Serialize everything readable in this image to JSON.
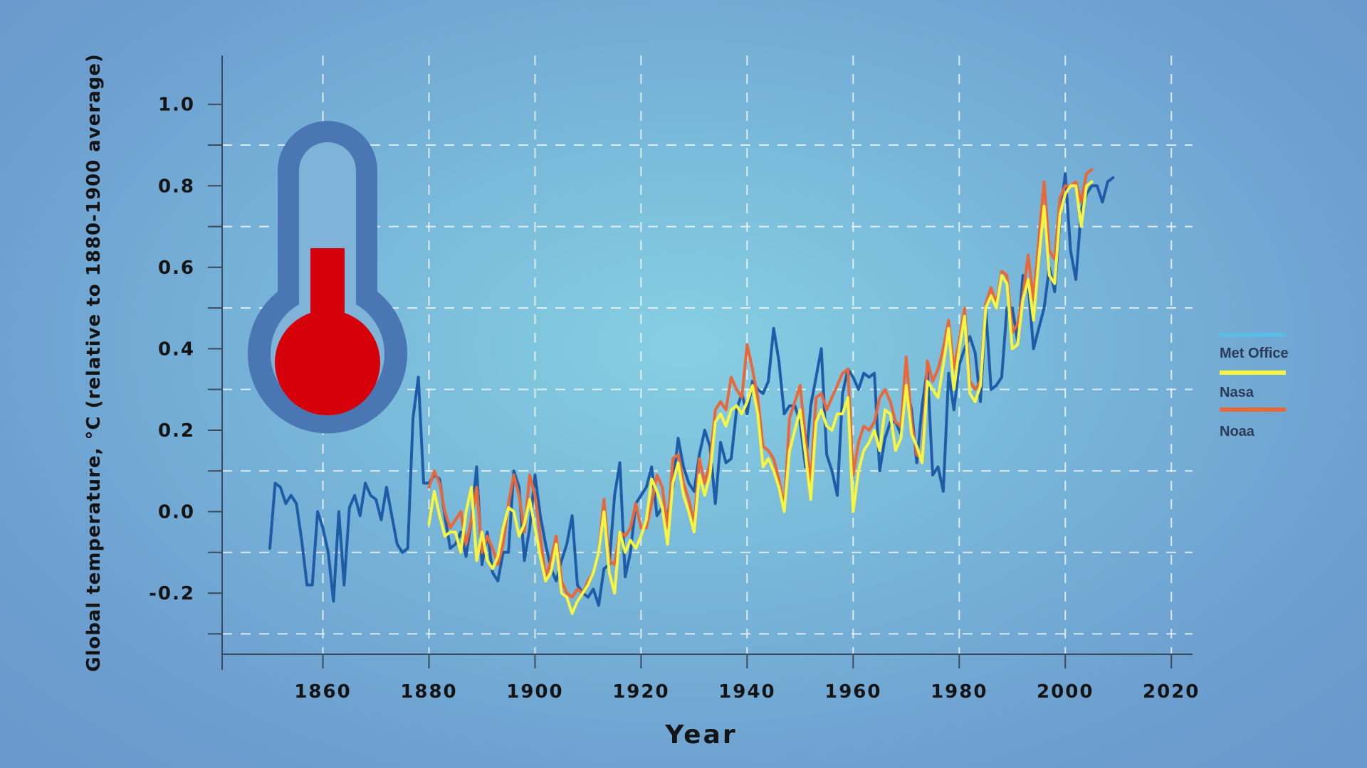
{
  "colors": {
    "met_office": "#1f5ca8",
    "met_office_legend": "#5bbde6",
    "nasa": "#f5f542",
    "noaa": "#e8683a",
    "axis": "#3a4a5a",
    "thermo_outer": "#4a77b4",
    "thermo_inner": "#79b9da",
    "thermo_fill": "#d5000a"
  },
  "chart_data": {
    "type": "line",
    "xlabel": "Year",
    "ylabel": "Global temperature, °C (relative to 1880-1900 average)",
    "xlim": [
      1841,
      2024
    ],
    "ylim": [
      -0.35,
      1.12
    ],
    "xticks": [
      "1860",
      "1880",
      "1900",
      "1920",
      "1940",
      "1960",
      "1980",
      "2000",
      "2020"
    ],
    "yticks": [
      "-0.2",
      "0.0",
      "0.2",
      "0.4",
      "0.6",
      "0.8",
      "1.0"
    ],
    "grid": true,
    "legend_placement": "right",
    "series": [
      {
        "name": "Met Office",
        "x_start": 1850,
        "values": [
          -0.09,
          0.07,
          0.06,
          0.02,
          0.04,
          0.02,
          -0.07,
          -0.18,
          -0.18,
          0.0,
          -0.04,
          -0.1,
          -0.22,
          0.0,
          -0.18,
          0.01,
          0.04,
          -0.01,
          0.07,
          0.04,
          0.03,
          -0.02,
          0.06,
          -0.01,
          -0.08,
          -0.1,
          -0.09,
          0.23,
          0.33,
          0.07,
          0.07,
          0.09,
          0.08,
          -0.01,
          -0.09,
          -0.08,
          -0.05,
          -0.11,
          -0.02,
          0.11,
          -0.13,
          -0.05,
          -0.15,
          -0.17,
          -0.1,
          -0.1,
          0.1,
          0.06,
          -0.12,
          -0.04,
          0.09,
          -0.01,
          -0.08,
          -0.14,
          -0.17,
          -0.12,
          -0.08,
          -0.01,
          -0.18,
          -0.2,
          -0.21,
          -0.19,
          -0.23,
          -0.14,
          -0.13,
          0.04,
          0.12,
          -0.16,
          -0.1,
          0.02,
          0.04,
          0.06,
          0.11,
          -0.01,
          0.01,
          -0.01,
          0.06,
          0.18,
          0.11,
          0.07,
          0.05,
          0.14,
          0.2,
          0.16,
          0.02,
          0.17,
          0.12,
          0.13,
          0.25,
          0.29,
          0.24,
          0.32,
          0.3,
          0.29,
          0.32,
          0.45,
          0.37,
          0.24,
          0.26,
          0.26,
          0.22,
          0.11,
          0.26,
          0.33,
          0.4,
          0.14,
          0.1,
          0.04,
          0.29,
          0.35,
          0.33,
          0.3,
          0.34,
          0.33,
          0.34,
          0.1,
          0.18,
          0.22,
          0.22,
          0.19,
          0.31,
          0.25,
          0.12,
          0.26,
          0.35,
          0.09,
          0.11,
          0.05,
          0.34,
          0.25,
          0.36,
          0.4,
          0.43,
          0.39,
          0.27,
          0.5,
          0.3,
          0.31,
          0.33,
          0.5,
          0.5,
          0.42,
          0.58,
          0.56,
          0.4,
          0.45,
          0.5,
          0.6,
          0.54,
          0.72,
          0.83,
          0.64,
          0.57,
          0.74,
          0.78,
          0.8,
          0.8,
          0.76,
          0.81,
          0.82
        ]
      },
      {
        "name": "Nasa",
        "x_start": 1880,
        "values": [
          -0.03,
          0.05,
          -0.01,
          -0.06,
          -0.05,
          -0.05,
          -0.1,
          0.0,
          0.06,
          -0.12,
          -0.05,
          -0.12,
          -0.14,
          -0.11,
          -0.04,
          0.01,
          0.0,
          -0.06,
          -0.03,
          0.03,
          -0.04,
          -0.11,
          -0.17,
          -0.15,
          -0.08,
          -0.2,
          -0.21,
          -0.25,
          -0.22,
          -0.2,
          -0.18,
          -0.15,
          -0.1,
          0.0,
          -0.15,
          -0.2,
          -0.05,
          -0.1,
          -0.07,
          -0.09,
          -0.06,
          -0.02,
          0.08,
          0.05,
          0.01,
          -0.08,
          0.07,
          0.12,
          0.04,
          0.0,
          -0.05,
          0.09,
          0.04,
          0.09,
          0.22,
          0.24,
          0.21,
          0.25,
          0.26,
          0.24,
          0.27,
          0.31,
          0.24,
          0.11,
          0.13,
          0.1,
          0.06,
          0.0,
          0.15,
          0.2,
          0.25,
          0.14,
          0.03,
          0.22,
          0.25,
          0.21,
          0.2,
          0.24,
          0.24,
          0.28,
          0.0,
          0.1,
          0.15,
          0.17,
          0.2,
          0.15,
          0.25,
          0.24,
          0.15,
          0.18,
          0.31,
          0.19,
          0.16,
          0.12,
          0.32,
          0.3,
          0.28,
          0.36,
          0.45,
          0.3,
          0.4,
          0.48,
          0.29,
          0.27,
          0.31,
          0.5,
          0.53,
          0.5,
          0.58,
          0.56,
          0.4,
          0.41,
          0.52,
          0.57,
          0.47,
          0.62,
          0.75,
          0.58,
          0.56,
          0.73,
          0.78,
          0.8,
          0.8,
          0.7,
          0.8,
          0.81
        ]
      },
      {
        "name": "Noaa",
        "x_start": 1880,
        "values": [
          0.06,
          0.1,
          0.07,
          0.0,
          -0.04,
          -0.02,
          0.0,
          -0.08,
          -0.02,
          0.06,
          -0.1,
          -0.06,
          -0.09,
          -0.13,
          -0.08,
          0.02,
          0.09,
          0.04,
          -0.05,
          0.09,
          0.04,
          -0.06,
          -0.16,
          -0.12,
          -0.06,
          -0.17,
          -0.2,
          -0.21,
          -0.19,
          -0.2,
          -0.17,
          -0.15,
          -0.1,
          0.03,
          -0.12,
          -0.13,
          -0.05,
          -0.06,
          -0.04,
          0.02,
          -0.04,
          -0.04,
          0.02,
          0.09,
          0.06,
          -0.04,
          0.13,
          0.14,
          0.07,
          0.03,
          -0.03,
          0.13,
          0.07,
          0.12,
          0.25,
          0.27,
          0.25,
          0.33,
          0.3,
          0.28,
          0.41,
          0.35,
          0.28,
          0.16,
          0.15,
          0.13,
          0.08,
          0.01,
          0.23,
          0.27,
          0.31,
          0.18,
          0.07,
          0.28,
          0.29,
          0.25,
          0.28,
          0.31,
          0.34,
          0.35,
          0.09,
          0.17,
          0.21,
          0.2,
          0.22,
          0.28,
          0.3,
          0.27,
          0.22,
          0.21,
          0.38,
          0.22,
          0.14,
          0.13,
          0.37,
          0.32,
          0.35,
          0.4,
          0.47,
          0.35,
          0.42,
          0.5,
          0.32,
          0.3,
          0.32,
          0.51,
          0.55,
          0.51,
          0.59,
          0.58,
          0.44,
          0.46,
          0.53,
          0.63,
          0.52,
          0.67,
          0.81,
          0.64,
          0.62,
          0.77,
          0.8,
          0.8,
          0.81,
          0.76,
          0.83,
          0.84
        ]
      }
    ]
  },
  "legend": {
    "items": [
      {
        "label": "Met Office"
      },
      {
        "label": "Nasa"
      },
      {
        "label": "Noaa"
      }
    ]
  }
}
